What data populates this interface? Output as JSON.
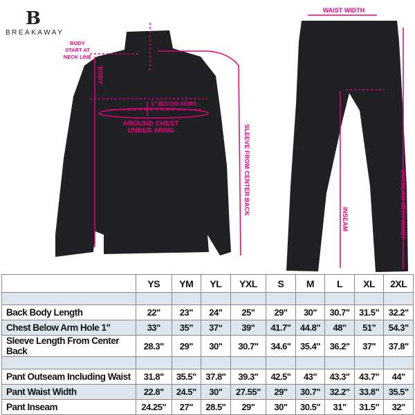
{
  "brand": {
    "logo_mark": "B",
    "name": "BREAKAWAY"
  },
  "colors": {
    "accent": "#e6007e",
    "garment": "#1f2124",
    "row_alt": "#dde6ef"
  },
  "annotations": {
    "body_start": "BODY START AT NECK LINE",
    "body": "BODY",
    "below_arms": "1\" BELOW ARMS",
    "around_chest": "AROUND CHEST UNDER ARMS",
    "sleeve": "SLEEVE FROM CENTER BACK",
    "waist_width": "WAIST WIDTH",
    "inseam": "INSEAM",
    "outseam": "OUTSEAM WITH WAIST"
  },
  "size_table": {
    "sizes": [
      "YS",
      "YM",
      "YL",
      "YXL",
      "S",
      "M",
      "L",
      "XL",
      "2XL"
    ],
    "jacket_rows": [
      {
        "label": "Back Body Length",
        "values": [
          "22\"",
          "23\"",
          "24\"",
          "25\"",
          "29\"",
          "30\"",
          "30.7\"",
          "31.5\"",
          "32.2\""
        ]
      },
      {
        "label": "Chest Below Arm Hole 1\"",
        "values": [
          "33\"",
          "35\"",
          "37“",
          "39\"",
          "41.7\"",
          "44.8\"",
          "48\"",
          "51\"",
          "54.3\""
        ]
      },
      {
        "label": "Sleeve Length From Center Back",
        "values": [
          "28.3\"",
          "29\"",
          "30\"",
          "30.7\"",
          "34.6\"",
          "35.4\"",
          "36.2\"",
          "37\"",
          "37.8\""
        ]
      }
    ],
    "pant_rows": [
      {
        "label": "Pant Outseam Including Waist",
        "values": [
          "31.8\"",
          "35.5\"",
          "37.8\"",
          "39.3\"",
          "42.5\"",
          "43\"",
          "43.3\"",
          "43.7\"",
          "44\""
        ]
      },
      {
        "label": "Pant Waist Width",
        "values": [
          "22.8\"",
          "24.5\"",
          "30\"",
          "27.55\"",
          "29\"",
          "30.7\"",
          "32.2\"",
          "33.8\"",
          "35.5\""
        ]
      },
      {
        "label": "Pant Inseam",
        "values": [
          "24.25\"",
          "27\"",
          "28.5\"",
          "29\"",
          "30\"",
          "30.5\"",
          "31\"",
          "31.5\"",
          "32\""
        ]
      }
    ]
  }
}
